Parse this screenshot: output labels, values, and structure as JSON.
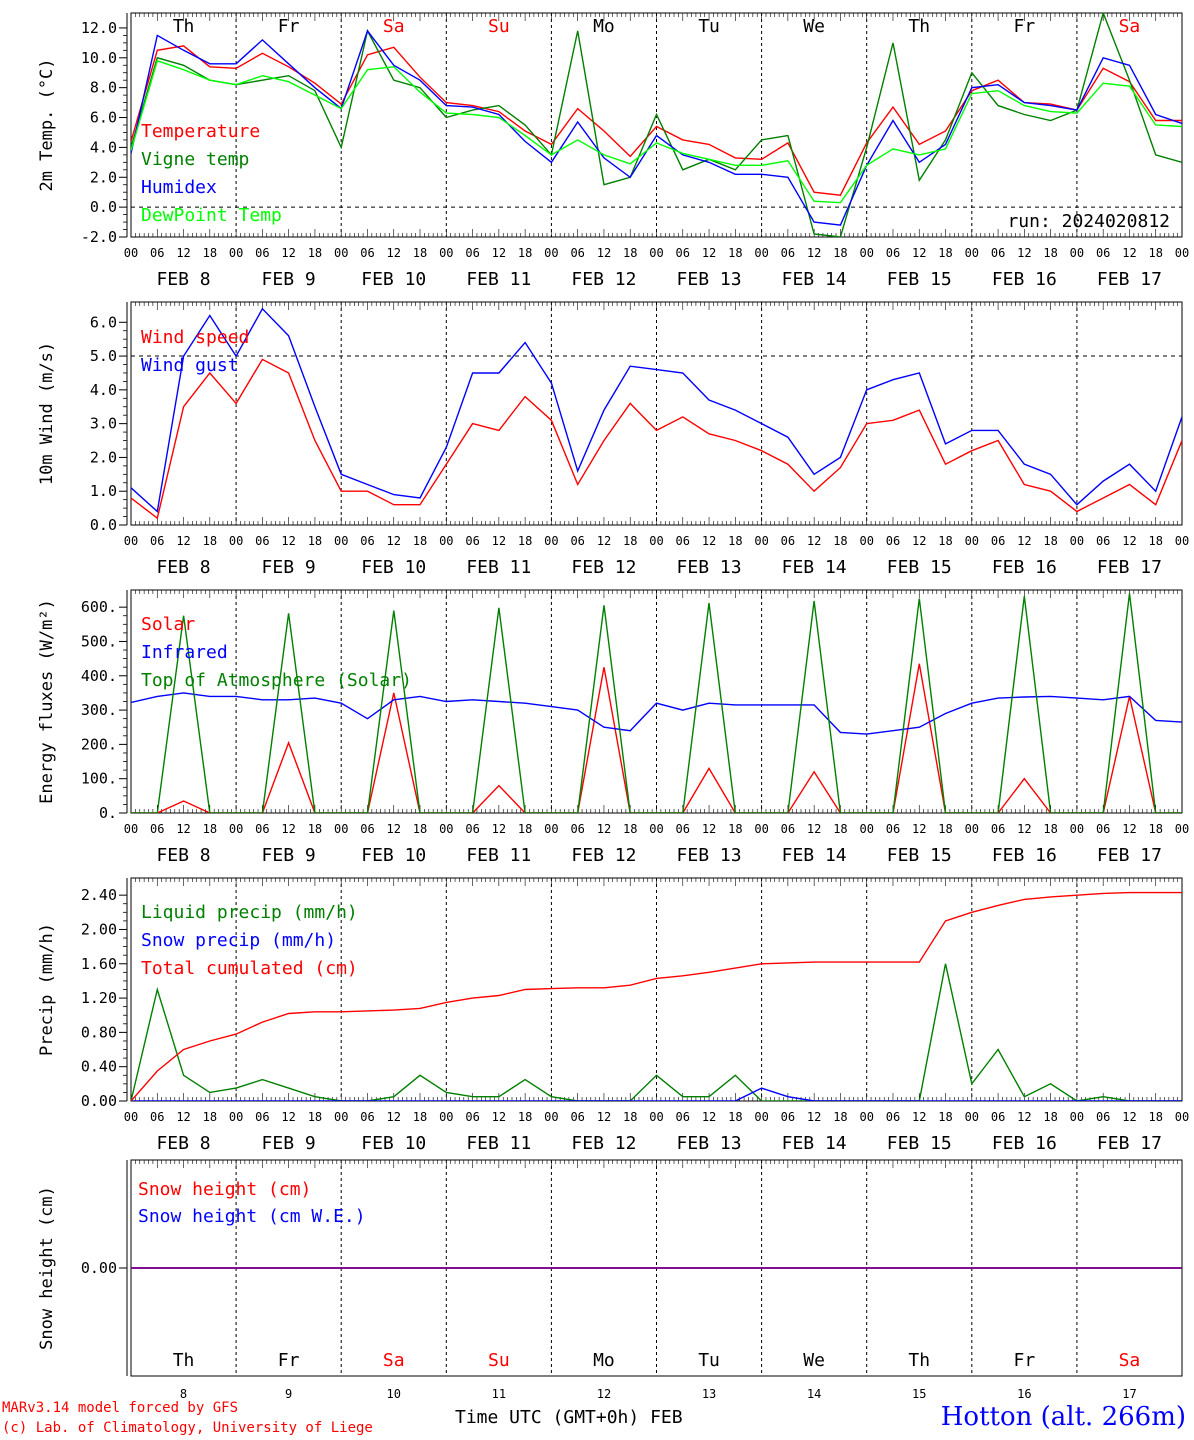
{
  "days": [
    {
      "label": "Th",
      "color": "#000000",
      "date": "FEB  8",
      "num": "8"
    },
    {
      "label": "Fr",
      "color": "#000000",
      "date": "FEB  9",
      "num": "9"
    },
    {
      "label": "Sa",
      "color": "#ff0000",
      "date": "FEB 10",
      "num": "10"
    },
    {
      "label": "Su",
      "color": "#ff0000",
      "date": "FEB 11",
      "num": "11"
    },
    {
      "label": "Mo",
      "color": "#000000",
      "date": "FEB 12",
      "num": "12"
    },
    {
      "label": "Tu",
      "color": "#000000",
      "date": "FEB 13",
      "num": "13"
    },
    {
      "label": "We",
      "color": "#000000",
      "date": "FEB 14",
      "num": "14"
    },
    {
      "label": "Th",
      "color": "#000000",
      "date": "FEB 15",
      "num": "15"
    },
    {
      "label": "Fr",
      "color": "#000000",
      "date": "FEB 16",
      "num": "16"
    },
    {
      "label": "Sa",
      "color": "#ff0000",
      "date": "FEB 17",
      "num": "17"
    }
  ],
  "hour_labels": [
    "00",
    "06",
    "12",
    "18"
  ],
  "end_hour_label": "00",
  "chart_data": [
    {
      "id": "temperature",
      "type": "line",
      "ylabel": "2m Temp. (°C)",
      "ylim": [
        -2,
        13
      ],
      "yticks": [
        -2,
        0,
        2,
        4,
        6,
        8,
        10,
        12
      ],
      "tick_decimals": 1,
      "dashed_hlines": [
        0
      ],
      "annotation": "run: 2024020812",
      "x": [
        0,
        6,
        12,
        18,
        24,
        30,
        36,
        42,
        48,
        54,
        60,
        66,
        72,
        78,
        84,
        90,
        96,
        102,
        108,
        114,
        120,
        126,
        132,
        138,
        144,
        150,
        156,
        162,
        168,
        174,
        180,
        186,
        192,
        198,
        204,
        210,
        216,
        222,
        228,
        234,
        240
      ],
      "series": [
        {
          "name": "Temperature",
          "color": "#ff0000",
          "values": [
            4.4,
            10.5,
            10.8,
            9.4,
            9.3,
            10.3,
            9.4,
            8.3,
            6.9,
            10.2,
            10.7,
            8.7,
            7.0,
            6.8,
            6.4,
            5.1,
            4.2,
            6.6,
            5.1,
            3.4,
            5.4,
            4.5,
            4.2,
            3.3,
            3.2,
            4.3,
            1.0,
            0.8,
            4.3,
            6.7,
            4.2,
            5.1,
            7.8,
            8.5,
            7.0,
            6.9,
            6.5,
            9.3,
            8.4,
            5.8,
            5.8
          ]
        },
        {
          "name": "Vigne temp",
          "color": "#008000",
          "values": [
            4.0,
            10.0,
            9.5,
            8.5,
            8.2,
            8.5,
            8.8,
            7.8,
            4.0,
            11.8,
            8.5,
            8.0,
            6.0,
            6.5,
            6.8,
            5.5,
            3.5,
            11.8,
            1.5,
            2.0,
            6.2,
            2.5,
            3.2,
            2.5,
            4.5,
            4.8,
            -1.8,
            -2.0,
            4.0,
            11.0,
            1.8,
            4.5,
            9.0,
            6.8,
            6.2,
            5.8,
            6.5,
            13.0,
            8.5,
            3.5,
            3.0
          ]
        },
        {
          "name": "Humidex",
          "color": "#0000ff",
          "values": [
            3.6,
            11.5,
            10.5,
            9.6,
            9.6,
            11.2,
            9.6,
            8.0,
            6.6,
            11.8,
            9.5,
            8.5,
            6.8,
            6.7,
            6.2,
            4.4,
            3.0,
            5.7,
            3.3,
            2.0,
            4.8,
            3.5,
            3.0,
            2.2,
            2.2,
            2.0,
            -1.0,
            -1.2,
            2.8,
            5.8,
            3.0,
            4.2,
            8.0,
            8.2,
            7.0,
            6.8,
            6.5,
            10.0,
            9.5,
            6.2,
            5.6
          ]
        },
        {
          "name": "DewPoint Temp",
          "color": "#00ff00",
          "values": [
            3.8,
            9.8,
            9.2,
            8.5,
            8.2,
            8.8,
            8.4,
            7.5,
            6.6,
            9.2,
            9.4,
            7.7,
            6.3,
            6.2,
            6.0,
            4.8,
            3.5,
            4.5,
            3.5,
            2.9,
            4.3,
            3.6,
            3.2,
            2.8,
            2.8,
            3.1,
            0.4,
            0.3,
            2.8,
            3.9,
            3.5,
            3.9,
            7.6,
            7.8,
            6.8,
            6.4,
            6.3,
            8.3,
            8.1,
            5.5,
            5.4
          ]
        }
      ]
    },
    {
      "id": "wind",
      "type": "line",
      "ylabel": "10m Wind (m/s)",
      "ylim": [
        0,
        6.6
      ],
      "yticks": [
        0,
        1,
        2,
        3,
        4,
        5,
        6
      ],
      "tick_decimals": 1,
      "dashed_hlines": [
        5
      ],
      "x": [
        0,
        6,
        12,
        18,
        24,
        30,
        36,
        42,
        48,
        54,
        60,
        66,
        72,
        78,
        84,
        90,
        96,
        102,
        108,
        114,
        120,
        126,
        132,
        138,
        144,
        150,
        156,
        162,
        168,
        174,
        180,
        186,
        192,
        198,
        204,
        210,
        216,
        222,
        228,
        234,
        240
      ],
      "series": [
        {
          "name": "Wind speed",
          "color": "#ff0000",
          "values": [
            0.8,
            0.2,
            3.5,
            4.5,
            3.6,
            4.9,
            4.5,
            2.5,
            1.0,
            1.0,
            0.6,
            0.6,
            1.8,
            3.0,
            2.8,
            3.8,
            3.1,
            1.2,
            2.5,
            3.6,
            2.8,
            3.2,
            2.7,
            2.5,
            2.2,
            1.8,
            1.0,
            1.7,
            3.0,
            3.1,
            3.4,
            1.8,
            2.2,
            2.5,
            1.2,
            1.0,
            0.4,
            0.8,
            1.2,
            0.6,
            2.5
          ]
        },
        {
          "name": "Wind gust",
          "color": "#0000ff",
          "values": [
            1.1,
            0.4,
            5.0,
            6.2,
            5.0,
            6.4,
            5.6,
            3.5,
            1.5,
            1.2,
            0.9,
            0.8,
            2.3,
            4.5,
            4.5,
            5.4,
            4.2,
            1.6,
            3.4,
            4.7,
            4.6,
            4.5,
            3.7,
            3.4,
            3.0,
            2.6,
            1.5,
            2.0,
            4.0,
            4.3,
            4.5,
            2.4,
            2.8,
            2.8,
            1.8,
            1.5,
            0.6,
            1.3,
            1.8,
            1.0,
            3.2
          ]
        }
      ]
    },
    {
      "id": "energy",
      "type": "line",
      "ylabel": "Energy fluxes (W/m²)",
      "ylim": [
        0,
        650
      ],
      "yticks": [
        0,
        100,
        200,
        300,
        400,
        500,
        600
      ],
      "tick_decimals": 0,
      "tick_suffix": ".",
      "dashed_hlines": [],
      "x": [
        0,
        6,
        12,
        18,
        24,
        30,
        36,
        42,
        48,
        54,
        60,
        66,
        72,
        78,
        84,
        90,
        96,
        102,
        108,
        114,
        120,
        126,
        132,
        138,
        144,
        150,
        156,
        162,
        168,
        174,
        180,
        186,
        192,
        198,
        204,
        210,
        216,
        222,
        228,
        234,
        240
      ],
      "series": [
        {
          "name": "Solar",
          "color": "#ff0000",
          "values": [
            0,
            0,
            35,
            0,
            0,
            0,
            205,
            0,
            0,
            0,
            350,
            0,
            0,
            0,
            80,
            0,
            0,
            0,
            425,
            0,
            0,
            0,
            130,
            0,
            0,
            0,
            120,
            0,
            0,
            0,
            435,
            0,
            0,
            0,
            100,
            0,
            0,
            0,
            340,
            0,
            0
          ]
        },
        {
          "name": "Infrared",
          "color": "#0000ff",
          "values": [
            322,
            340,
            350,
            340,
            340,
            330,
            330,
            335,
            320,
            275,
            330,
            340,
            325,
            330,
            325,
            320,
            310,
            300,
            250,
            240,
            320,
            300,
            320,
            315,
            315,
            315,
            315,
            235,
            230,
            240,
            250,
            290,
            320,
            335,
            338,
            340,
            335,
            330,
            340,
            270,
            265
          ]
        },
        {
          "name": "Top of Atmosphere (Solar)",
          "color": "#008000",
          "values": [
            0,
            0,
            575,
            0,
            0,
            0,
            582,
            0,
            0,
            0,
            590,
            0,
            0,
            0,
            598,
            0,
            0,
            0,
            605,
            0,
            0,
            0,
            612,
            0,
            0,
            0,
            618,
            0,
            0,
            0,
            625,
            0,
            0,
            0,
            632,
            0,
            0,
            0,
            640,
            0,
            0
          ]
        }
      ]
    },
    {
      "id": "precip",
      "type": "line",
      "ylabel": "Precip (mm/h)",
      "ylim": [
        0,
        2.6
      ],
      "yticks": [
        0,
        0.4,
        0.8,
        1.2,
        1.6,
        2.0,
        2.4
      ],
      "tick_decimals": 2,
      "dashed_hlines": [],
      "x": [
        0,
        6,
        12,
        18,
        24,
        30,
        36,
        42,
        48,
        54,
        60,
        66,
        72,
        78,
        84,
        90,
        96,
        102,
        108,
        114,
        120,
        126,
        132,
        138,
        144,
        150,
        156,
        162,
        168,
        174,
        180,
        186,
        192,
        198,
        204,
        210,
        216,
        222,
        228,
        234,
        240
      ],
      "series": [
        {
          "name": "Liquid precip (mm/h)",
          "color": "#008000",
          "values": [
            0.0,
            1.3,
            0.3,
            0.1,
            0.15,
            0.25,
            0.15,
            0.05,
            0.0,
            0.0,
            0.05,
            0.3,
            0.1,
            0.05,
            0.05,
            0.25,
            0.05,
            0.0,
            0.0,
            0.0,
            0.3,
            0.05,
            0.05,
            0.3,
            0.0,
            0.0,
            0.0,
            0.0,
            0.0,
            0.0,
            0.0,
            1.6,
            0.2,
            0.6,
            0.05,
            0.2,
            0.0,
            0.05,
            0.0,
            0.0,
            0.0
          ]
        },
        {
          "name": "Snow precip (mm/h)",
          "color": "#0000ff",
          "values": [
            0,
            0,
            0,
            0,
            0,
            0,
            0,
            0,
            0,
            0,
            0,
            0,
            0,
            0,
            0,
            0,
            0,
            0,
            0,
            0,
            0,
            0,
            0,
            0,
            0.15,
            0.05,
            0,
            0,
            0,
            0,
            0,
            0,
            0,
            0,
            0,
            0,
            0,
            0,
            0,
            0,
            0
          ]
        },
        {
          "name": "Total cumulated (cm)",
          "color": "#ff0000",
          "values": [
            0.0,
            0.35,
            0.6,
            0.7,
            0.78,
            0.92,
            1.02,
            1.04,
            1.04,
            1.05,
            1.06,
            1.08,
            1.15,
            1.2,
            1.23,
            1.3,
            1.31,
            1.32,
            1.32,
            1.35,
            1.43,
            1.46,
            1.5,
            1.55,
            1.6,
            1.61,
            1.62,
            1.62,
            1.62,
            1.62,
            1.62,
            2.1,
            2.2,
            2.28,
            2.35,
            2.38,
            2.4,
            2.42,
            2.43,
            2.43,
            2.43
          ]
        }
      ]
    },
    {
      "id": "snow",
      "type": "line",
      "ylabel": "Snow height (cm)",
      "ylim": [
        -1,
        1
      ],
      "yticks": [
        0
      ],
      "tick_decimals": 2,
      "dashed_hlines": [],
      "x": [
        0,
        240
      ],
      "series": [
        {
          "name": "Snow height (cm)",
          "color": "#ff0000",
          "values": [
            0,
            0
          ]
        },
        {
          "name": "Snow height (cm W.E.)",
          "color": "#0000ff",
          "values": [
            0,
            0
          ]
        }
      ]
    }
  ],
  "footer": {
    "credit_line1": "MARv3.14 model forced by GFS",
    "credit_line2": "(c) Lab. of Climatology, University of Liege",
    "axis_title": "Time UTC (GMT+0h) FEB",
    "station": "Hotton (alt. 266m)"
  }
}
